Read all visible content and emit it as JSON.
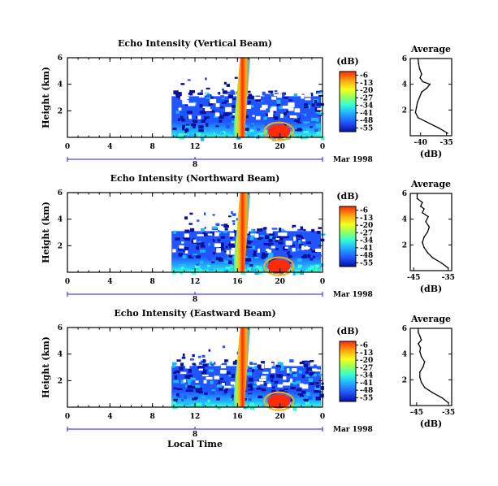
{
  "chart_data": [
    {
      "type": "heatmap",
      "title": "Echo Intensity (Vertical Beam)",
      "ylabel": "Height (km)",
      "xlabel": "",
      "x_ticks": [
        "0",
        "4",
        "8",
        "12",
        "16",
        "20",
        "0"
      ],
      "y_ticks": [
        "6",
        "4",
        "2"
      ],
      "date_ticks": [
        "8"
      ],
      "date_label": "Mar 1998",
      "xlim_hours": [
        0,
        24
      ],
      "ylim_km": [
        0,
        6
      ],
      "colorbar": {
        "unit": "(dB)",
        "labels": [
          "-6",
          "-13",
          "-20",
          "-27",
          "-34",
          "-41",
          "-48",
          "-55"
        ]
      },
      "profile": {
        "title": "Average",
        "xlabel": "(dB)",
        "x_ticks": [
          "-40",
          "-35"
        ],
        "y_ticks": [
          "6",
          "4",
          "2"
        ],
        "xlim": [
          -42,
          -34
        ],
        "ylim": [
          0,
          6
        ],
        "height_km": [
          0.2,
          0.6,
          1.0,
          1.4,
          1.8,
          2.2,
          2.6,
          3.0,
          3.4,
          3.7,
          4.0,
          4.2,
          4.5,
          4.8,
          5.2,
          5.6,
          6.0
        ],
        "db": [
          -34.8,
          -36.5,
          -38.5,
          -40.5,
          -41.0,
          -40.8,
          -40.6,
          -40.2,
          -39.8,
          -38.8,
          -38.2,
          -39.6,
          -40.1,
          -39.8,
          -40.2,
          -40.4,
          -40.5
        ]
      }
    },
    {
      "type": "heatmap",
      "title": "Echo Intensity (Northward Beam)",
      "ylabel": "Height (km)",
      "xlabel": "",
      "x_ticks": [
        "0",
        "4",
        "8",
        "12",
        "16",
        "20",
        "0"
      ],
      "y_ticks": [
        "6",
        "4",
        "2"
      ],
      "date_ticks": [
        "8"
      ],
      "date_label": "Mar 1998",
      "xlim_hours": [
        0,
        24
      ],
      "ylim_km": [
        0,
        6
      ],
      "colorbar": {
        "unit": "(dB)",
        "labels": [
          "-6",
          "-13",
          "-20",
          "-27",
          "-34",
          "-41",
          "-48",
          "-55"
        ]
      },
      "profile": {
        "title": "Average",
        "xlabel": "(dB)",
        "x_ticks": [
          "-45",
          "-35"
        ],
        "y_ticks": [
          "6",
          "4",
          "2"
        ],
        "xlim": [
          -46,
          -34
        ],
        "ylim": [
          0,
          6
        ],
        "height_km": [
          0.2,
          0.6,
          1.0,
          1.4,
          1.8,
          2.2,
          2.6,
          3.0,
          3.4,
          3.8,
          4.2,
          4.5,
          4.8,
          5.0,
          5.3,
          5.6,
          6.0
        ],
        "db": [
          -35.0,
          -37.0,
          -39.5,
          -41.0,
          -42.0,
          -42.5,
          -42.0,
          -41.0,
          -40.5,
          -41.5,
          -40.8,
          -42.5,
          -42.0,
          -43.0,
          -42.5,
          -44.0,
          -44.0
        ]
      }
    },
    {
      "type": "heatmap",
      "title": "Echo Intensity (Eastward Beam)",
      "ylabel": "Height (km)",
      "xlabel": "Local Time",
      "x_ticks": [
        "0",
        "4",
        "8",
        "12",
        "16",
        "20",
        "0"
      ],
      "y_ticks": [
        "6",
        "4",
        "2"
      ],
      "date_ticks": [
        "8"
      ],
      "date_label": "Mar 1998",
      "xlim_hours": [
        0,
        24
      ],
      "ylim_km": [
        0,
        6
      ],
      "colorbar": {
        "unit": "(dB)",
        "labels": [
          "-6",
          "-13",
          "-20",
          "-27",
          "-34",
          "-41",
          "-48",
          "-55"
        ]
      },
      "profile": {
        "title": "Average",
        "xlabel": "(dB)",
        "x_ticks": [
          "-45",
          "-35"
        ],
        "y_ticks": [
          "6",
          "4",
          "2"
        ],
        "xlim": [
          -47,
          -34
        ],
        "ylim": [
          0,
          6
        ],
        "height_km": [
          0.2,
          0.6,
          1.0,
          1.4,
          1.8,
          2.2,
          2.6,
          3.0,
          3.4,
          3.8,
          4.2,
          4.5,
          4.8,
          5.1,
          5.4,
          5.7,
          6.0
        ],
        "db": [
          -35.0,
          -37.0,
          -40.0,
          -42.5,
          -43.5,
          -44.0,
          -44.0,
          -43.0,
          -42.5,
          -43.5,
          -44.0,
          -43.8,
          -44.5,
          -43.5,
          -44.0,
          -44.5,
          -44.5
        ]
      }
    }
  ],
  "colors": {
    "scale": [
      "#08109c",
      "#2155ff",
      "#22b7ff",
      "#38ffd0",
      "#9aff5a",
      "#f5ff20",
      "#ffaa10",
      "#ff2a08"
    ],
    "axis": "#000000",
    "date_axis": "#1a1aff"
  }
}
